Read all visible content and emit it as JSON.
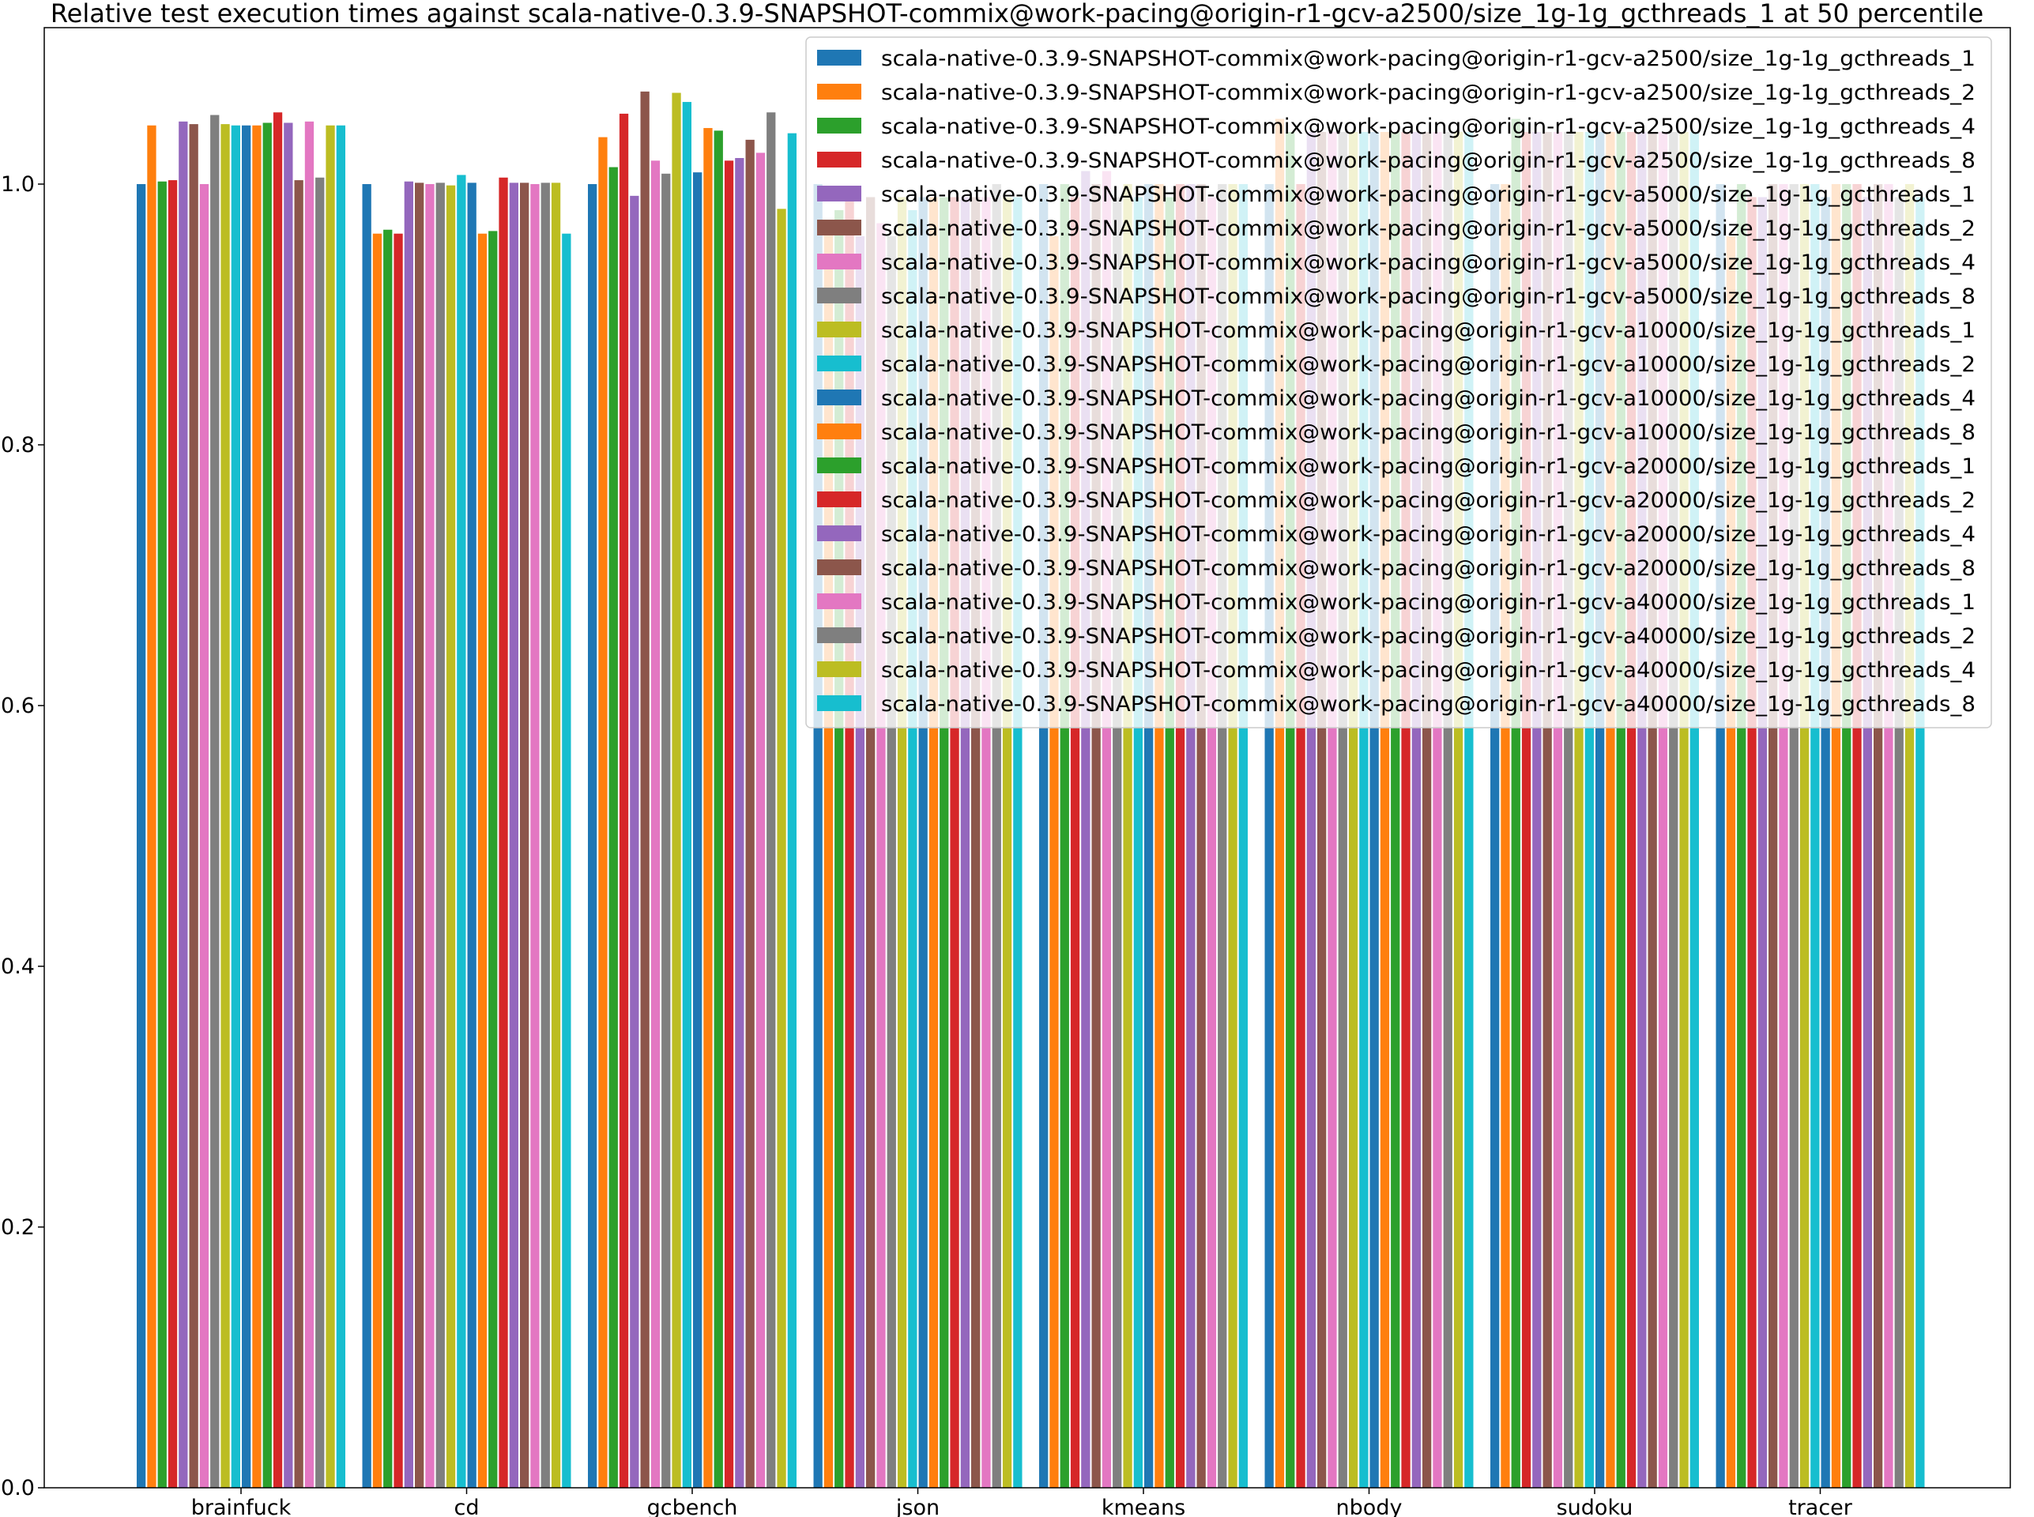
{
  "chart_data": {
    "type": "bar",
    "title": "Relative test execution times against scala-native-0.3.9-SNAPSHOT-commix@work-pacing@origin-r1-gcv-a2500/size_1g-1g_gcthreads_1 at 50 percentile",
    "xlabel": "",
    "ylabel": "",
    "ylim": [
      0,
      1.12
    ],
    "yticks": [
      "0.0",
      "0.2",
      "0.4",
      "0.6",
      "0.8",
      "1.0"
    ],
    "grid": false,
    "legend_position": "top-right",
    "categories": [
      "brainfuck",
      "cd",
      "gcbench",
      "json",
      "kmeans",
      "nbody",
      "sudoku",
      "tracer"
    ],
    "series": [
      {
        "name": "scala-native-0.3.9-SNAPSHOT-commix@work-pacing@origin-r1-gcv-a2500/size_1g-1g_gcthreads_1",
        "color": "#1f77b4",
        "values": [
          1.0,
          1.0,
          1.0,
          1.0,
          1.0,
          1.0,
          1.0,
          1.0
        ]
      },
      {
        "name": "scala-native-0.3.9-SNAPSHOT-commix@work-pacing@origin-r1-gcv-a2500/size_1g-1g_gcthreads_2",
        "color": "#ff7f0e",
        "values": [
          1.045,
          0.962,
          1.036,
          0.97,
          0.96,
          1.05,
          1.0,
          0.96
        ]
      },
      {
        "name": "scala-native-0.3.9-SNAPSHOT-commix@work-pacing@origin-r1-gcv-a2500/size_1g-1g_gcthreads_4",
        "color": "#2ca02c",
        "values": [
          1.002,
          0.965,
          1.013,
          0.98,
          1.0,
          1.04,
          1.05,
          1.0
        ]
      },
      {
        "name": "scala-native-0.3.9-SNAPSHOT-commix@work-pacing@origin-r1-gcv-a2500/size_1g-1g_gcthreads_8",
        "color": "#d62728",
        "values": [
          1.003,
          0.962,
          1.054,
          0.99,
          0.99,
          1.0,
          1.04,
          0.99
        ]
      },
      {
        "name": "scala-native-0.3.9-SNAPSHOT-commix@work-pacing@origin-r1-gcv-a5000/size_1g-1g_gcthreads_1",
        "color": "#9467bd",
        "values": [
          1.048,
          1.002,
          0.991,
          0.96,
          1.01,
          1.04,
          1.04,
          0.99
        ]
      },
      {
        "name": "scala-native-0.3.9-SNAPSHOT-commix@work-pacing@origin-r1-gcv-a5000/size_1g-1g_gcthreads_2",
        "color": "#8c564b",
        "values": [
          1.046,
          1.001,
          1.071,
          0.99,
          1.0,
          1.04,
          1.04,
          1.0
        ]
      },
      {
        "name": "scala-native-0.3.9-SNAPSHOT-commix@work-pacing@origin-r1-gcv-a5000/size_1g-1g_gcthreads_4",
        "color": "#e377c2",
        "values": [
          1.0,
          1.0,
          1.018,
          0.97,
          1.01,
          1.04,
          1.04,
          1.0
        ]
      },
      {
        "name": "scala-native-0.3.9-SNAPSHOT-commix@work-pacing@origin-r1-gcv-a5000/size_1g-1g_gcthreads_8",
        "color": "#7f7f7f",
        "values": [
          1.053,
          1.001,
          1.008,
          0.96,
          0.99,
          1.04,
          1.04,
          1.0
        ]
      },
      {
        "name": "scala-native-0.3.9-SNAPSHOT-commix@work-pacing@origin-r1-gcv-a10000/size_1g-1g_gcthreads_1",
        "color": "#bcbd22",
        "values": [
          1.046,
          0.999,
          1.07,
          0.99,
          1.0,
          1.04,
          1.04,
          1.0
        ]
      },
      {
        "name": "scala-native-0.3.9-SNAPSHOT-commix@work-pacing@origin-r1-gcv-a10000/size_1g-1g_gcthreads_2",
        "color": "#17becf",
        "values": [
          1.045,
          1.007,
          1.063,
          0.98,
          0.99,
          1.04,
          1.04,
          1.0
        ]
      },
      {
        "name": "scala-native-0.3.9-SNAPSHOT-commix@work-pacing@origin-r1-gcv-a10000/size_1g-1g_gcthreads_4",
        "color": "#1f77b4",
        "values": [
          1.045,
          1.001,
          1.009,
          0.99,
          1.0,
          1.04,
          1.04,
          0.99
        ]
      },
      {
        "name": "scala-native-0.3.9-SNAPSHOT-commix@work-pacing@origin-r1-gcv-a10000/size_1g-1g_gcthreads_8",
        "color": "#ff7f0e",
        "values": [
          1.045,
          0.962,
          1.043,
          0.99,
          1.0,
          1.04,
          1.04,
          1.0
        ]
      },
      {
        "name": "scala-native-0.3.9-SNAPSHOT-commix@work-pacing@origin-r1-gcv-a20000/size_1g-1g_gcthreads_1",
        "color": "#2ca02c",
        "values": [
          1.047,
          0.964,
          1.041,
          0.99,
          0.99,
          1.04,
          1.04,
          1.0
        ]
      },
      {
        "name": "scala-native-0.3.9-SNAPSHOT-commix@work-pacing@origin-r1-gcv-a20000/size_1g-1g_gcthreads_2",
        "color": "#d62728",
        "values": [
          1.055,
          1.005,
          1.018,
          0.99,
          1.0,
          1.04,
          1.04,
          1.0
        ]
      },
      {
        "name": "scala-native-0.3.9-SNAPSHOT-commix@work-pacing@origin-r1-gcv-a20000/size_1g-1g_gcthreads_4",
        "color": "#9467bd",
        "values": [
          1.047,
          1.001,
          1.02,
          0.99,
          1.0,
          1.04,
          1.04,
          0.99
        ]
      },
      {
        "name": "scala-native-0.3.9-SNAPSHOT-commix@work-pacing@origin-r1-gcv-a20000/size_1g-1g_gcthreads_8",
        "color": "#8c564b",
        "values": [
          1.003,
          1.001,
          1.034,
          0.99,
          1.0,
          1.04,
          1.04,
          1.0
        ]
      },
      {
        "name": "scala-native-0.3.9-SNAPSHOT-commix@work-pacing@origin-r1-gcv-a40000/size_1g-1g_gcthreads_1",
        "color": "#e377c2",
        "values": [
          1.048,
          1.0,
          1.024,
          0.99,
          0.99,
          1.04,
          1.04,
          1.0
        ]
      },
      {
        "name": "scala-native-0.3.9-SNAPSHOT-commix@work-pacing@origin-r1-gcv-a40000/size_1g-1g_gcthreads_2",
        "color": "#7f7f7f",
        "values": [
          1.005,
          1.001,
          1.055,
          1.0,
          1.0,
          1.04,
          1.04,
          0.99
        ]
      },
      {
        "name": "scala-native-0.3.9-SNAPSHOT-commix@work-pacing@origin-r1-gcv-a40000/size_1g-1g_gcthreads_4",
        "color": "#bcbd22",
        "values": [
          1.045,
          1.001,
          0.981,
          0.99,
          1.0,
          1.04,
          1.04,
          1.0
        ]
      },
      {
        "name": "scala-native-0.3.9-SNAPSHOT-commix@work-pacing@origin-r1-gcv-a40000/size_1g-1g_gcthreads_8",
        "color": "#17becf",
        "values": [
          1.045,
          0.962,
          1.039,
          0.99,
          1.0,
          1.04,
          1.04,
          0.99
        ]
      }
    ]
  }
}
